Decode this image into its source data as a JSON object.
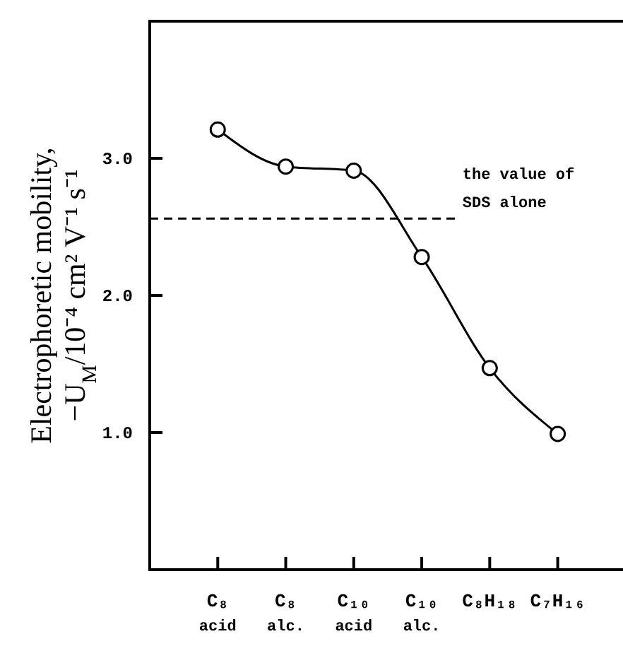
{
  "chart_data": {
    "type": "line",
    "ylabel": "Electrophoretic mobility,\n−U$_{M}$/10⁻⁴ cm² V⁻¹ s⁻¹",
    "categories": [
      "C₈ acid",
      "C₈ alc.",
      "C₁₀ acid",
      "C₁₀ alc.",
      "C₈H₁₈",
      "C₇H₁₆"
    ],
    "series": [
      {
        "color": "#000000",
        "values": [
          3.21,
          2.94,
          2.91,
          2.28,
          1.47,
          0.99
        ]
      }
    ],
    "marker": "circle",
    "line_style": "solid",
    "ylim": [
      0,
      4
    ],
    "yticks": [
      {
        "value": 1,
        "label": "1.0"
      },
      {
        "value": 2,
        "label": "2.0"
      },
      {
        "value": 3,
        "label": "3.0"
      }
    ],
    "ref_lines": [
      {
        "axis": "y",
        "value": 2.56,
        "label": "the value of\nSDS alone",
        "line_style": "dashed",
        "color": "#000000"
      }
    ],
    "grid": false
  }
}
